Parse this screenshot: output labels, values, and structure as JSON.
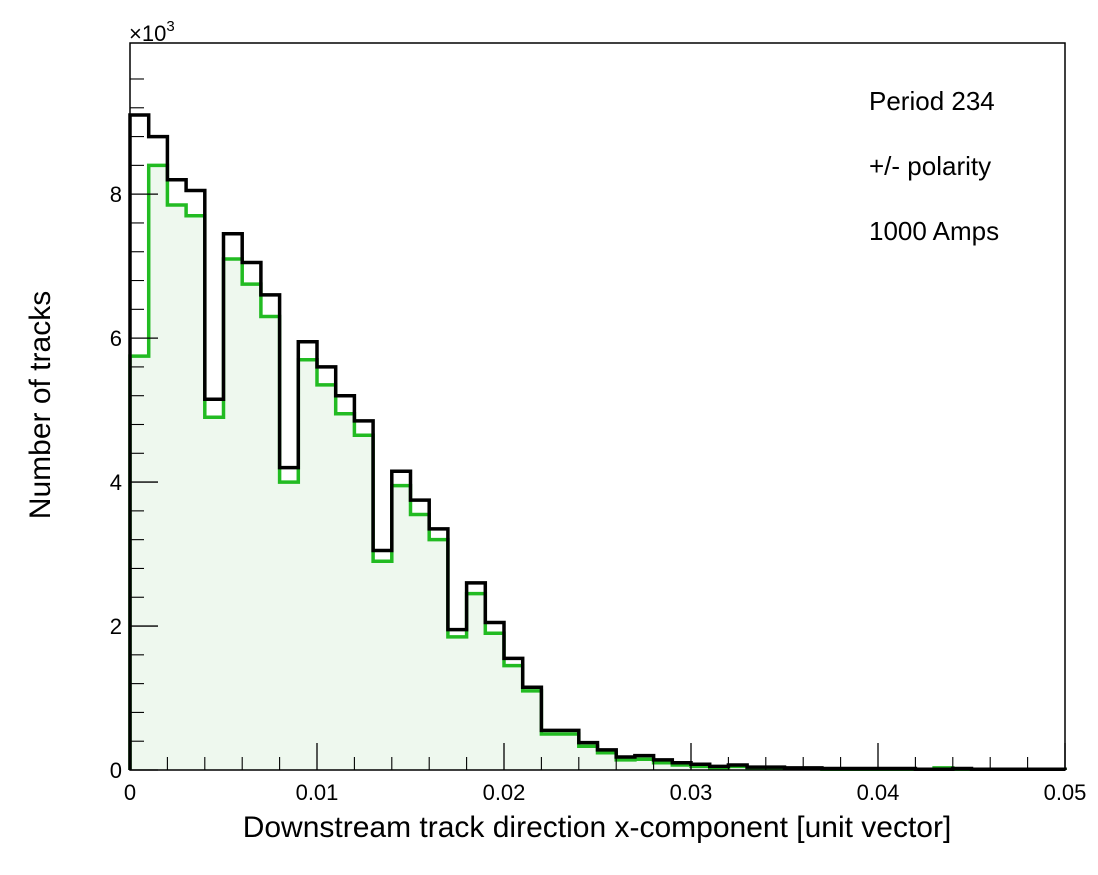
{
  "chart_data": {
    "type": "histogram",
    "xlabel": "Downstream track direction x-component [unit vector]",
    "ylabel": "Number of tracks",
    "y_multiplier": "×10",
    "y_multiplier_exp": "3",
    "xlim": [
      0,
      0.05
    ],
    "ylim": [
      0,
      10.1
    ],
    "bin_width": 0.001,
    "x_ticks": [
      "0",
      "0.01",
      "0.02",
      "0.03",
      "0.04",
      "0.05"
    ],
    "y_ticks": [
      "0",
      "2",
      "4",
      "6",
      "8"
    ],
    "annotations": [
      "Period 234",
      "+/- polarity",
      "1000 Amps"
    ],
    "colors": {
      "black_series": "#000000",
      "green_series": "#22bb22",
      "green_fill": "#eef8ee"
    },
    "series": [
      {
        "color": "#000000",
        "values": [
          9.1,
          8.8,
          8.2,
          8.05,
          5.15,
          7.45,
          7.05,
          6.6,
          4.2,
          5.95,
          5.6,
          5.2,
          4.85,
          3.05,
          4.15,
          3.75,
          3.35,
          1.95,
          2.6,
          2.05,
          1.55,
          1.15,
          0.55,
          0.55,
          0.38,
          0.28,
          0.18,
          0.2,
          0.14,
          0.1,
          0.08,
          0.05,
          0.07,
          0.04,
          0.04,
          0.03,
          0.03,
          0.02,
          0.02,
          0.02,
          0.02,
          0.02,
          0.01,
          0.01,
          0.02,
          0.01,
          0.01,
          0.01,
          0.01,
          0.01
        ]
      },
      {
        "color": "#22bb22",
        "fill": true,
        "values": [
          5.75,
          8.4,
          7.85,
          7.7,
          4.9,
          7.1,
          6.75,
          6.3,
          4.0,
          5.7,
          5.35,
          4.95,
          4.65,
          2.9,
          3.95,
          3.55,
          3.2,
          1.85,
          2.45,
          1.9,
          1.45,
          1.1,
          0.5,
          0.5,
          0.33,
          0.24,
          0.14,
          0.15,
          0.1,
          0.07,
          0.05,
          0.03,
          0.05,
          0.03,
          0.03,
          0.02,
          0.02,
          0.01,
          0.01,
          0.01,
          0.01,
          0.01,
          0.01,
          0.03,
          0.01,
          0.01,
          0.01,
          0.01,
          0.01,
          0.01
        ]
      }
    ]
  }
}
